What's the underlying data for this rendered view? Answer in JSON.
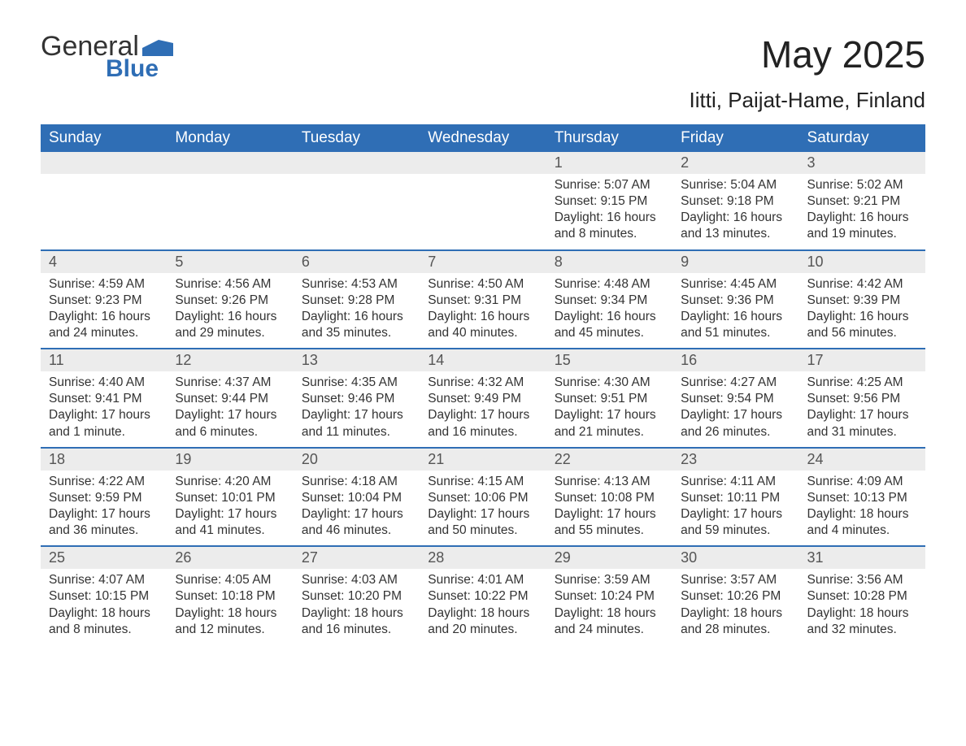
{
  "logo": {
    "line1": "General",
    "line2": "Blue",
    "icon_color": "#2f6eb5",
    "text_color": "#333333"
  },
  "header": {
    "month_title": "May 2025",
    "location": "Iitti, Paijat-Hame, Finland"
  },
  "colors": {
    "header_bg": "#2f6eb5",
    "header_text": "#ffffff",
    "daynum_bg": "#ececec",
    "border": "#2f6eb5",
    "body_text": "#333333"
  },
  "day_names": [
    "Sunday",
    "Monday",
    "Tuesday",
    "Wednesday",
    "Thursday",
    "Friday",
    "Saturday"
  ],
  "labels": {
    "sunrise": "Sunrise:",
    "sunset": "Sunset:",
    "daylight": "Daylight:"
  },
  "weeks": [
    [
      null,
      null,
      null,
      null,
      {
        "n": "1",
        "sunrise": "5:07 AM",
        "sunset": "9:15 PM",
        "daylight": "16 hours and 8 minutes."
      },
      {
        "n": "2",
        "sunrise": "5:04 AM",
        "sunset": "9:18 PM",
        "daylight": "16 hours and 13 minutes."
      },
      {
        "n": "3",
        "sunrise": "5:02 AM",
        "sunset": "9:21 PM",
        "daylight": "16 hours and 19 minutes."
      }
    ],
    [
      {
        "n": "4",
        "sunrise": "4:59 AM",
        "sunset": "9:23 PM",
        "daylight": "16 hours and 24 minutes."
      },
      {
        "n": "5",
        "sunrise": "4:56 AM",
        "sunset": "9:26 PM",
        "daylight": "16 hours and 29 minutes."
      },
      {
        "n": "6",
        "sunrise": "4:53 AM",
        "sunset": "9:28 PM",
        "daylight": "16 hours and 35 minutes."
      },
      {
        "n": "7",
        "sunrise": "4:50 AM",
        "sunset": "9:31 PM",
        "daylight": "16 hours and 40 minutes."
      },
      {
        "n": "8",
        "sunrise": "4:48 AM",
        "sunset": "9:34 PM",
        "daylight": "16 hours and 45 minutes."
      },
      {
        "n": "9",
        "sunrise": "4:45 AM",
        "sunset": "9:36 PM",
        "daylight": "16 hours and 51 minutes."
      },
      {
        "n": "10",
        "sunrise": "4:42 AM",
        "sunset": "9:39 PM",
        "daylight": "16 hours and 56 minutes."
      }
    ],
    [
      {
        "n": "11",
        "sunrise": "4:40 AM",
        "sunset": "9:41 PM",
        "daylight": "17 hours and 1 minute."
      },
      {
        "n": "12",
        "sunrise": "4:37 AM",
        "sunset": "9:44 PM",
        "daylight": "17 hours and 6 minutes."
      },
      {
        "n": "13",
        "sunrise": "4:35 AM",
        "sunset": "9:46 PM",
        "daylight": "17 hours and 11 minutes."
      },
      {
        "n": "14",
        "sunrise": "4:32 AM",
        "sunset": "9:49 PM",
        "daylight": "17 hours and 16 minutes."
      },
      {
        "n": "15",
        "sunrise": "4:30 AM",
        "sunset": "9:51 PM",
        "daylight": "17 hours and 21 minutes."
      },
      {
        "n": "16",
        "sunrise": "4:27 AM",
        "sunset": "9:54 PM",
        "daylight": "17 hours and 26 minutes."
      },
      {
        "n": "17",
        "sunrise": "4:25 AM",
        "sunset": "9:56 PM",
        "daylight": "17 hours and 31 minutes."
      }
    ],
    [
      {
        "n": "18",
        "sunrise": "4:22 AM",
        "sunset": "9:59 PM",
        "daylight": "17 hours and 36 minutes."
      },
      {
        "n": "19",
        "sunrise": "4:20 AM",
        "sunset": "10:01 PM",
        "daylight": "17 hours and 41 minutes."
      },
      {
        "n": "20",
        "sunrise": "4:18 AM",
        "sunset": "10:04 PM",
        "daylight": "17 hours and 46 minutes."
      },
      {
        "n": "21",
        "sunrise": "4:15 AM",
        "sunset": "10:06 PM",
        "daylight": "17 hours and 50 minutes."
      },
      {
        "n": "22",
        "sunrise": "4:13 AM",
        "sunset": "10:08 PM",
        "daylight": "17 hours and 55 minutes."
      },
      {
        "n": "23",
        "sunrise": "4:11 AM",
        "sunset": "10:11 PM",
        "daylight": "17 hours and 59 minutes."
      },
      {
        "n": "24",
        "sunrise": "4:09 AM",
        "sunset": "10:13 PM",
        "daylight": "18 hours and 4 minutes."
      }
    ],
    [
      {
        "n": "25",
        "sunrise": "4:07 AM",
        "sunset": "10:15 PM",
        "daylight": "18 hours and 8 minutes."
      },
      {
        "n": "26",
        "sunrise": "4:05 AM",
        "sunset": "10:18 PM",
        "daylight": "18 hours and 12 minutes."
      },
      {
        "n": "27",
        "sunrise": "4:03 AM",
        "sunset": "10:20 PM",
        "daylight": "18 hours and 16 minutes."
      },
      {
        "n": "28",
        "sunrise": "4:01 AM",
        "sunset": "10:22 PM",
        "daylight": "18 hours and 20 minutes."
      },
      {
        "n": "29",
        "sunrise": "3:59 AM",
        "sunset": "10:24 PM",
        "daylight": "18 hours and 24 minutes."
      },
      {
        "n": "30",
        "sunrise": "3:57 AM",
        "sunset": "10:26 PM",
        "daylight": "18 hours and 28 minutes."
      },
      {
        "n": "31",
        "sunrise": "3:56 AM",
        "sunset": "10:28 PM",
        "daylight": "18 hours and 32 minutes."
      }
    ]
  ]
}
